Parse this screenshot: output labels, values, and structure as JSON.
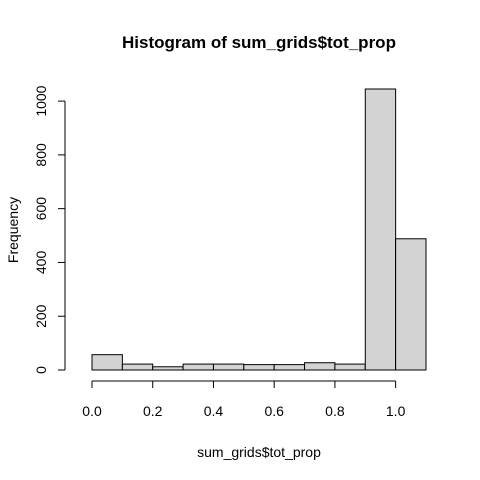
{
  "chart_data": {
    "type": "bar",
    "title": "Histogram of sum_grids$tot_prop",
    "xlabel": "sum_grids$tot_prop",
    "ylabel": "Frequency",
    "bin_width": 0.1,
    "bins": [
      {
        "start": 0.0,
        "end": 0.1,
        "count": 57
      },
      {
        "start": 0.1,
        "end": 0.2,
        "count": 22
      },
      {
        "start": 0.2,
        "end": 0.3,
        "count": 12
      },
      {
        "start": 0.3,
        "end": 0.4,
        "count": 22
      },
      {
        "start": 0.4,
        "end": 0.5,
        "count": 22
      },
      {
        "start": 0.5,
        "end": 0.6,
        "count": 20
      },
      {
        "start": 0.6,
        "end": 0.7,
        "count": 20
      },
      {
        "start": 0.7,
        "end": 0.8,
        "count": 27
      },
      {
        "start": 0.8,
        "end": 0.9,
        "count": 22
      },
      {
        "start": 0.9,
        "end": 1.0,
        "count": 1045
      },
      {
        "start": 1.0,
        "end": 1.1,
        "count": 488
      }
    ],
    "x_ticks": [
      0.0,
      0.2,
      0.4,
      0.6,
      0.8,
      1.0
    ],
    "x_tick_labels": [
      "0.0",
      "0.2",
      "0.4",
      "0.6",
      "0.8",
      "1.0"
    ],
    "y_ticks": [
      0,
      200,
      400,
      600,
      800,
      1000
    ],
    "y_tick_labels": [
      "0",
      "200",
      "400",
      "600",
      "800",
      "1000"
    ],
    "xlim": [
      0.0,
      1.1
    ],
    "ylim": [
      0,
      1045
    ],
    "grid": false,
    "bar_color": "#d3d3d3",
    "border_color": "#000000"
  }
}
